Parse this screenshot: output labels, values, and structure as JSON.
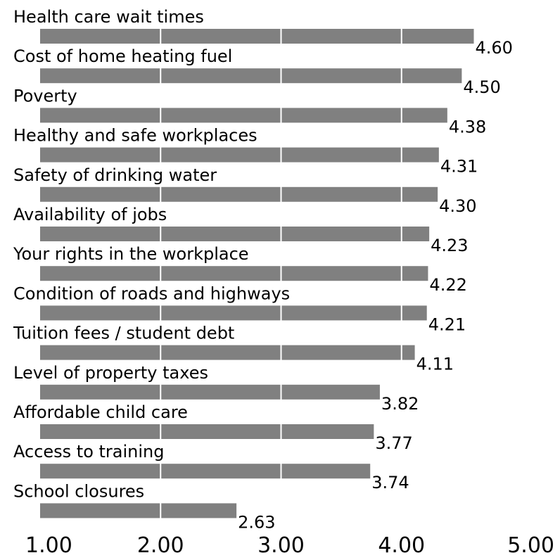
{
  "chart_data": {
    "type": "bar",
    "orientation": "horizontal",
    "categories": [
      "Health care wait times",
      "Cost of home heating fuel",
      "Poverty",
      "Healthy and safe workplaces",
      "Safety of drinking water",
      "Availability of jobs",
      "Your rights in the workplace",
      "Condition of roads and highways",
      "Tuition fees / student debt",
      "Level of property taxes",
      "Affordable child care",
      "Access to training",
      "School closures"
    ],
    "values": [
      4.6,
      4.5,
      4.38,
      4.31,
      4.3,
      4.23,
      4.22,
      4.21,
      4.11,
      3.82,
      3.77,
      3.74,
      2.63
    ],
    "value_labels": [
      "4.60",
      "4.50",
      "4.38",
      "4.31",
      "4.30",
      "4.23",
      "4.22",
      "4.21",
      "4.11",
      "3.82",
      "3.77",
      "3.74",
      "2.63"
    ],
    "xlim": [
      1.0,
      5.0
    ],
    "x_ticks": [
      1.0,
      2.0,
      3.0,
      4.0,
      5.0
    ],
    "x_tick_labels": [
      "1.00",
      "2.00",
      "3.00",
      "4.00",
      "5.00"
    ],
    "bar_color": "#808080",
    "gridline_color": "#ffffff",
    "grid": true
  }
}
